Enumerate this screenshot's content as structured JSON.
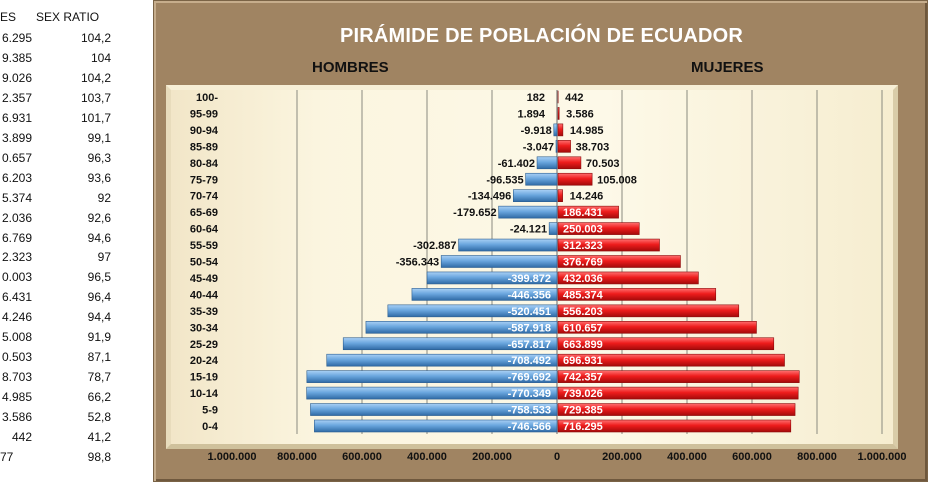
{
  "sheet": {
    "headers": [
      "ES",
      "SEX RATIO"
    ],
    "rows": [
      [
        "6.295",
        "104,2"
      ],
      [
        "9.385",
        "104"
      ],
      [
        "9.026",
        "104,2"
      ],
      [
        "2.357",
        "103,7"
      ],
      [
        "6.931",
        "101,7"
      ],
      [
        "3.899",
        "99,1"
      ],
      [
        "0.657",
        "96,3"
      ],
      [
        "6.203",
        "93,6"
      ],
      [
        "5.374",
        "92"
      ],
      [
        "2.036",
        "92,6"
      ],
      [
        "6.769",
        "94,6"
      ],
      [
        "2.323",
        "97"
      ],
      [
        "0.003",
        "96,5"
      ],
      [
        "6.431",
        "96,4"
      ],
      [
        "4.246",
        "94,4"
      ],
      [
        "5.008",
        "91,9"
      ],
      [
        "0.503",
        "87,1"
      ],
      [
        "8.703",
        "78,7"
      ],
      [
        "4.985",
        "66,2"
      ],
      [
        "3.586",
        "52,8"
      ],
      [
        "442",
        "41,2"
      ],
      [
        "77",
        "98,8"
      ]
    ]
  },
  "chart_data": {
    "type": "bar",
    "orientation": "horizontal",
    "title": "PIRÁMIDE DE POBLACIÓN DE ECUADOR",
    "left_label": "HOMBRES",
    "right_label": "MUJERES",
    "categories": [
      "100-",
      "95-99",
      "90-94",
      "85-89",
      "80-84",
      "75-79",
      "70-74",
      "65-69",
      "60-64",
      "55-59",
      "50-54",
      "45-49",
      "40-44",
      "35-39",
      "30-34",
      "25-29",
      "20-24",
      "15-19",
      "10-14",
      "5-9",
      "0-4"
    ],
    "series": [
      {
        "name": "HOMBRES",
        "color": "#5b9bd5",
        "values": [
          182,
          1894,
          -9918,
          -3047,
          -61402,
          -96535,
          -134496,
          -179652,
          -24121,
          -302887,
          -356343,
          -399872,
          -446356,
          -520451,
          -587918,
          -657817,
          -708492,
          -769692,
          -770349,
          -758533,
          -746566
        ],
        "labels": [
          "182",
          "1.894",
          "-9.918",
          "-3.047",
          "-61.402",
          "-96.535",
          "-134.496",
          "-179.652",
          "-24.121",
          "-302.887",
          "-356.343",
          "-399.872",
          "-446.356",
          "-520.451",
          "-587.918",
          "-657.817",
          "-708.492",
          "-769.692",
          "-770.349",
          "-758.533",
          "-746.566"
        ]
      },
      {
        "name": "MUJERES",
        "color": "#e0141b",
        "values": [
          442,
          3586,
          14985,
          38703,
          70503,
          105008,
          14246,
          186431,
          250003,
          312323,
          376769,
          432036,
          485374,
          556203,
          610657,
          663899,
          696931,
          742357,
          739026,
          729385,
          716295
        ],
        "labels": [
          "442",
          "3.586",
          "14.985",
          "38.703",
          "70.503",
          "105.008",
          "14.246",
          "186.431",
          "250.003",
          "312.323",
          "376.769",
          "432.036",
          "485.374",
          "556.203",
          "610.657",
          "663.899",
          "696.931",
          "742.357",
          "739.026",
          "729.385",
          "716.295"
        ]
      }
    ],
    "xlim": [
      -1000000,
      1000000
    ],
    "xticks": [
      "1.000.000",
      "800.000",
      "600.000",
      "400.000",
      "200.000",
      "0",
      "200.000",
      "400.000",
      "600.000",
      "800.000",
      "1.000.000"
    ],
    "grid": true,
    "colors": {
      "frame": "#a08462",
      "plot": "#fbf5df"
    }
  }
}
